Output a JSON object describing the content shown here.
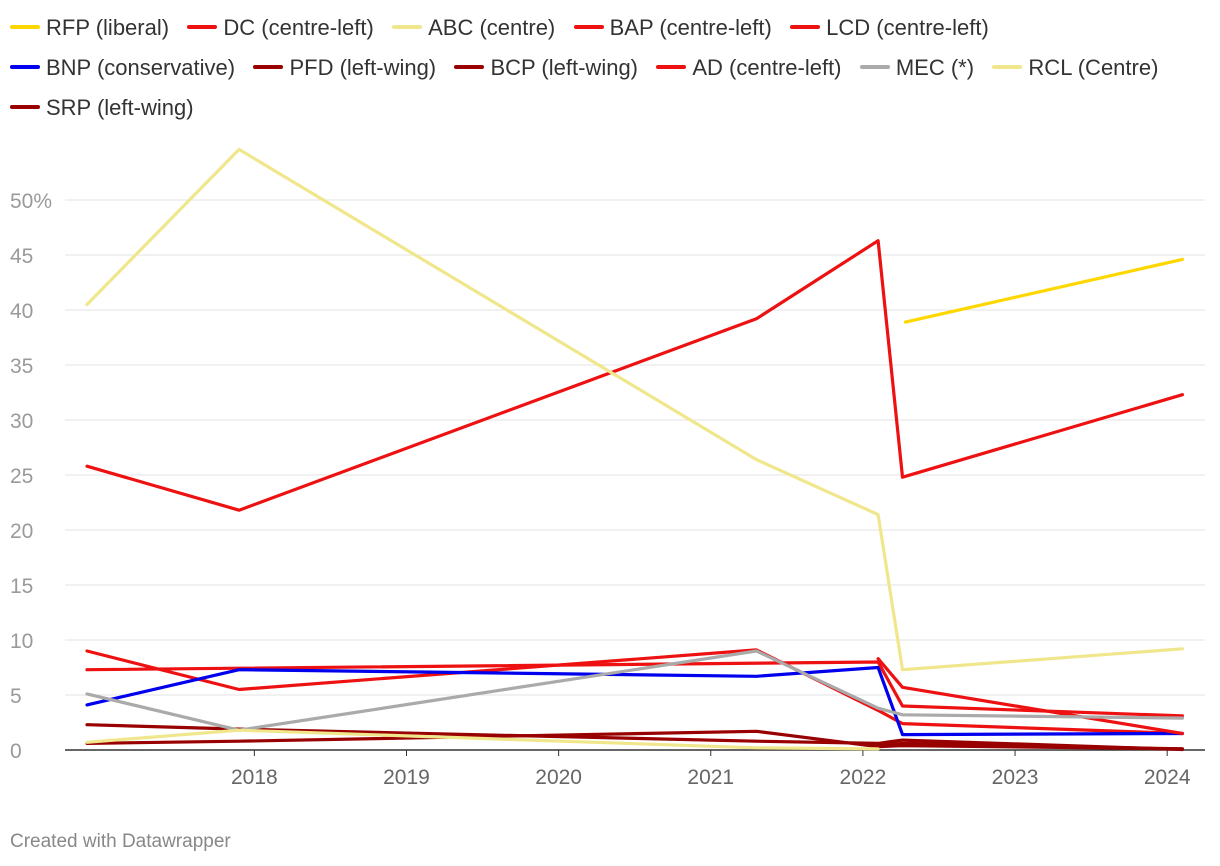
{
  "chart_data": {
    "type": "line",
    "title": "",
    "xlabel": "",
    "ylabel": "",
    "xlim": [
      2017.4,
      2024.65
    ],
    "ylim": [
      0,
      55
    ],
    "x_ticks": [
      "2018",
      "2019",
      "2020",
      "2021",
      "2022",
      "2023",
      "2024"
    ],
    "y_ticks": [
      "0",
      "5",
      "10",
      "15",
      "20",
      "25",
      "30",
      "35",
      "40",
      "45",
      "50%"
    ],
    "grid": true,
    "legend_position": "top",
    "series": [
      {
        "name": "RFP (liberal)",
        "color": "#ffd700",
        "points": [
          [
            2022.78,
            38.9
          ],
          [
            2024.6,
            44.6
          ]
        ]
      },
      {
        "name": "DC (centre-left)",
        "color": "#ee1111",
        "points": [
          [
            2017.4,
            25.8
          ],
          [
            2018.4,
            21.8
          ],
          [
            2021.8,
            39.2
          ],
          [
            2022.6,
            46.3
          ],
          [
            2022.76,
            24.8
          ],
          [
            2024.6,
            32.3
          ]
        ]
      },
      {
        "name": "ABC (centre)",
        "color": "#f0e68c",
        "points": [
          [
            2017.4,
            40.5
          ],
          [
            2018.4,
            54.6
          ],
          [
            2021.8,
            26.4
          ],
          [
            2022.6,
            21.4
          ],
          [
            2022.76,
            7.3
          ],
          [
            2024.6,
            9.2
          ]
        ]
      },
      {
        "name": "BAP (centre-left)",
        "color": "#ee1111",
        "points": [
          [
            2017.4,
            9.0
          ],
          [
            2018.4,
            5.5
          ],
          [
            2021.8,
            9.1
          ],
          [
            2022.6,
            3.6
          ],
          [
            2022.76,
            2.4
          ],
          [
            2024.6,
            1.5
          ]
        ]
      },
      {
        "name": "LCD (centre-left)",
        "color": "#ee1111",
        "points": [
          [
            2017.4,
            7.3
          ],
          [
            2022.6,
            8.0
          ],
          [
            2022.76,
            4.0
          ],
          [
            2024.6,
            3.1
          ]
        ]
      },
      {
        "name": "BNP (conservative)",
        "color": "#0000ee",
        "points": [
          [
            2017.4,
            4.1
          ],
          [
            2018.4,
            7.3
          ],
          [
            2021.8,
            6.7
          ],
          [
            2022.6,
            7.5
          ],
          [
            2022.76,
            1.4
          ],
          [
            2024.6,
            1.5
          ]
        ]
      },
      {
        "name": "PFD (left-wing)",
        "color": "#990000",
        "points": [
          [
            2017.4,
            2.3
          ],
          [
            2018.4,
            1.9
          ],
          [
            2021.8,
            0.8
          ],
          [
            2022.6,
            0.6
          ],
          [
            2022.76,
            0.9
          ],
          [
            2024.6,
            0.05
          ]
        ]
      },
      {
        "name": "BCP (left-wing)",
        "color": "#990000",
        "points": [
          [
            2017.4,
            0.6
          ],
          [
            2018.4,
            0.8
          ],
          [
            2021.8,
            1.7
          ],
          [
            2022.6,
            0.3
          ],
          [
            2022.76,
            0.4
          ],
          [
            2024.6,
            0.1
          ]
        ]
      },
      {
        "name": "AD (centre-left)",
        "color": "#ee1111",
        "points": [
          [
            2022.6,
            8.3
          ],
          [
            2022.76,
            5.7
          ],
          [
            2024.6,
            1.5
          ]
        ]
      },
      {
        "name": "MEC (*)",
        "color": "#aaaaaa",
        "points": [
          [
            2017.4,
            5.1
          ],
          [
            2018.4,
            1.8
          ],
          [
            2021.8,
            9.0
          ],
          [
            2022.6,
            3.8
          ],
          [
            2022.76,
            3.2
          ],
          [
            2024.6,
            2.9
          ]
        ]
      },
      {
        "name": "RCL (Centre)",
        "color": "#f0e68c",
        "points": [
          [
            2017.4,
            0.7
          ],
          [
            2018.4,
            1.8
          ],
          [
            2021.8,
            0.2
          ],
          [
            2022.6,
            0.1
          ]
        ]
      },
      {
        "name": "SRP (left-wing)",
        "color": "#990000",
        "points": [
          [
            2022.6,
            0.4
          ],
          [
            2022.76,
            0.6
          ],
          [
            2024.6,
            0.1
          ]
        ]
      }
    ]
  },
  "footer": {
    "credit": "Created with Datawrapper"
  }
}
